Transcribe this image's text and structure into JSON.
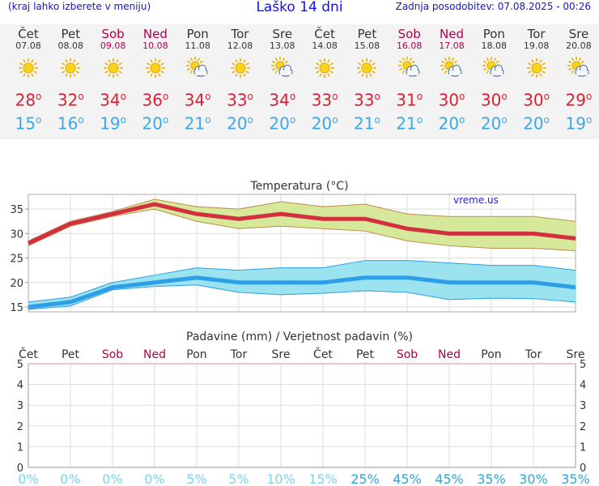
{
  "header": {
    "menu_hint": "(kraj lahko izberete v meniju)",
    "title": "Laško 14 dni",
    "updated": "Zadnja posodobitev: 07.08.2025 - 00:26"
  },
  "colors": {
    "weekday": "#333333",
    "weekend": "#b0004a",
    "max_temp": "#dd1e33",
    "min_temp": "#3aa8e8",
    "max_band": "#d6e89a",
    "min_band": "#9be3ef",
    "precip_prob": "#7fd3ee"
  },
  "days": [
    {
      "name": "Čet",
      "date": "07.08",
      "icon": "sun-icon",
      "tmax": "28",
      "tmin": "15",
      "weekend": false
    },
    {
      "name": "Pet",
      "date": "08.08",
      "icon": "sun-icon",
      "tmax": "32",
      "tmin": "16",
      "weekend": false
    },
    {
      "name": "Sob",
      "date": "09.08",
      "icon": "sun-icon",
      "tmax": "34",
      "tmin": "19",
      "weekend": true
    },
    {
      "name": "Ned",
      "date": "10.08",
      "icon": "sun-icon",
      "tmax": "36",
      "tmin": "20",
      "weekend": true
    },
    {
      "name": "Pon",
      "date": "11.08",
      "icon": "partly-cloudy-icon",
      "tmax": "34",
      "tmin": "21",
      "weekend": false
    },
    {
      "name": "Tor",
      "date": "12.08",
      "icon": "sun-icon",
      "tmax": "33",
      "tmin": "20",
      "weekend": false
    },
    {
      "name": "Sre",
      "date": "13.08",
      "icon": "partly-cloudy-icon",
      "tmax": "34",
      "tmin": "20",
      "weekend": false
    },
    {
      "name": "Čet",
      "date": "14.08",
      "icon": "sun-icon",
      "tmax": "33",
      "tmin": "20",
      "weekend": false
    },
    {
      "name": "Pet",
      "date": "15.08",
      "icon": "sun-icon",
      "tmax": "33",
      "tmin": "21",
      "weekend": false
    },
    {
      "name": "Sob",
      "date": "16.08",
      "icon": "partly-cloudy-icon",
      "tmax": "31",
      "tmin": "21",
      "weekend": true
    },
    {
      "name": "Ned",
      "date": "17.08",
      "icon": "partly-cloudy-icon",
      "tmax": "30",
      "tmin": "20",
      "weekend": true
    },
    {
      "name": "Pon",
      "date": "18.08",
      "icon": "partly-cloudy-icon",
      "tmax": "30",
      "tmin": "20",
      "weekend": false
    },
    {
      "name": "Tor",
      "date": "19.08",
      "icon": "sun-icon",
      "tmax": "30",
      "tmin": "20",
      "weekend": false
    },
    {
      "name": "Sre",
      "date": "20.08",
      "icon": "partly-cloudy-icon",
      "tmax": "29",
      "tmin": "19",
      "weekend": false
    }
  ],
  "chart_data": [
    {
      "type": "line",
      "title": "Temperatura (°C)",
      "watermark": "vreme.us",
      "ylim": [
        14,
        38
      ],
      "yticks": [
        15,
        20,
        25,
        30,
        35
      ],
      "ytick_labels": [
        "15",
        "20",
        "25",
        "30",
        "35"
      ],
      "grid": true,
      "series": [
        {
          "name": "max",
          "values": [
            28,
            32,
            34,
            36,
            34,
            33,
            34,
            33,
            33,
            31,
            30,
            30,
            30,
            29
          ],
          "band_upper": [
            28.5,
            32.5,
            34.5,
            37,
            35.5,
            35,
            36.5,
            35.5,
            36,
            34,
            33.5,
            33.5,
            33.5,
            32.5
          ],
          "band_lower": [
            27.5,
            31.5,
            33.5,
            35,
            32.5,
            31,
            31.5,
            31,
            30.5,
            28.5,
            27.5,
            27,
            27,
            26.5
          ]
        },
        {
          "name": "min",
          "values": [
            15,
            16,
            19,
            20,
            21,
            20,
            20,
            20,
            21,
            21,
            20,
            20,
            20,
            19
          ],
          "band_upper": [
            16,
            17,
            20,
            21.5,
            23,
            22.5,
            23,
            23,
            24.5,
            24.5,
            24,
            23.5,
            23.5,
            22.5
          ],
          "band_lower": [
            14.5,
            15.2,
            18.5,
            19.2,
            19.5,
            18,
            17.5,
            17.8,
            18.3,
            18,
            16.5,
            16.8,
            16.7,
            16
          ]
        }
      ]
    },
    {
      "type": "bar",
      "title": "Padavine (mm) / Verjetnost padavin (%)",
      "categories": [
        "Čet",
        "Pet",
        "Sob",
        "Ned",
        "Pon",
        "Tor",
        "Sre",
        "Čet",
        "Pet",
        "Sob",
        "Ned",
        "Pon",
        "Tor",
        "Sre"
      ],
      "weekend": [
        false,
        false,
        true,
        true,
        false,
        false,
        false,
        false,
        false,
        true,
        true,
        false,
        false,
        false
      ],
      "ylim": [
        0,
        5
      ],
      "yticks": [
        0,
        1,
        2,
        3,
        4,
        5
      ],
      "ytick_labels": [
        "0",
        "1",
        "2",
        "3",
        "4",
        "5"
      ],
      "values": [
        0,
        0,
        0,
        0,
        0,
        0,
        0,
        0,
        0,
        0,
        0,
        0,
        0,
        0
      ],
      "probability_labels": [
        "0%",
        "0%",
        "0%",
        "0%",
        "5%",
        "5%",
        "10%",
        "15%",
        "25%",
        "45%",
        "45%",
        "35%",
        "30%",
        "35%"
      ],
      "probability_values": [
        0,
        0,
        0,
        0,
        5,
        5,
        10,
        15,
        25,
        45,
        45,
        35,
        30,
        35
      ]
    }
  ]
}
